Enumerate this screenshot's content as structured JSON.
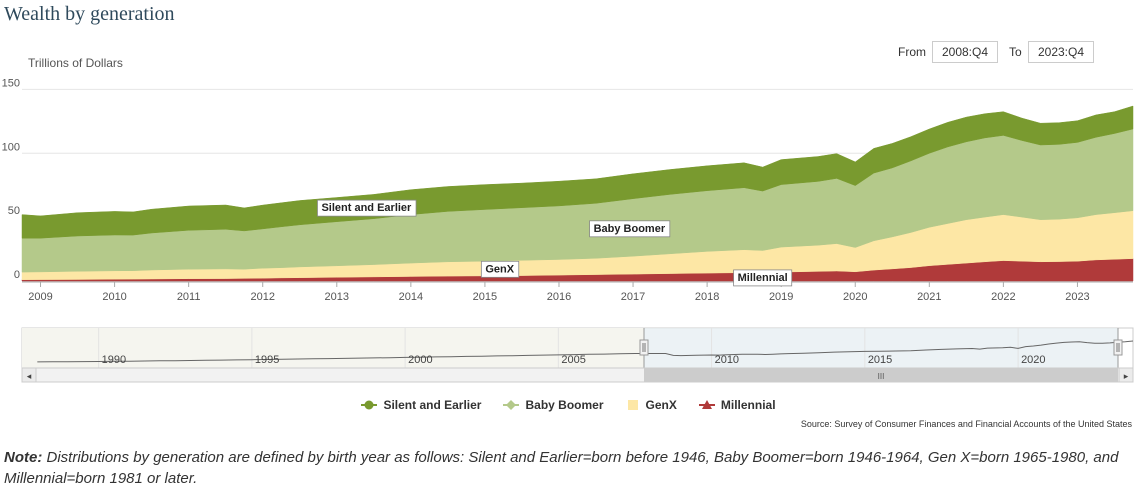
{
  "title": "Wealth by generation",
  "range_selector": {
    "from_label": "From",
    "from_value": "2008:Q4",
    "to_label": "To",
    "to_value": "2023:Q4"
  },
  "legend": {
    "items": [
      {
        "label": "Silent and Earlier",
        "color": "#799a2f"
      },
      {
        "label": "Baby Boomer",
        "color": "#b4c98a"
      },
      {
        "label": "GenX",
        "color": "#fde7a5"
      },
      {
        "label": "Millennial",
        "color": "#b03a3a"
      }
    ]
  },
  "annotations": [
    {
      "text": "Silent and Earlier",
      "series": "Silent and Earlier",
      "x": 2013.4
    },
    {
      "text": "Baby Boomer",
      "series": "Baby Boomer",
      "x": 2016.95
    },
    {
      "text": "GenX",
      "series": "GenX",
      "x": 2015.2
    },
    {
      "text": "Millennial",
      "series": "Millennial",
      "x": 2018.75
    }
  ],
  "source": "Source: Survey of Consumer Finances and Financial Accounts of the United States",
  "note": {
    "label": "Note:",
    "text": "Distributions by generation are defined by birth year as follows: Silent and Earlier=born before 1946, Baby Boomer=born 1946-1964, Gen X=born 1965-1980, and Millennial=born 1981 or later."
  },
  "navigator": {
    "tick_labels": [
      "1990",
      "1995",
      "2000",
      "2005",
      "2010",
      "2015",
      "2020"
    ],
    "scroll_grip": "III",
    "left_arrow": "◂",
    "right_arrow": "▸"
  },
  "chart_data": {
    "type": "area",
    "stacked": true,
    "ylabel": "Trillions of Dollars",
    "ylim": [
      0,
      155
    ],
    "yticks": [
      0,
      50,
      100,
      150
    ],
    "xlim": [
      2008.75,
      2023.75
    ],
    "xticks": [
      "2009",
      "2010",
      "2011",
      "2012",
      "2013",
      "2014",
      "2015",
      "2016",
      "2017",
      "2018",
      "2019",
      "2020",
      "2021",
      "2022",
      "2023"
    ],
    "grid": true,
    "x": [
      2008.75,
      2009.0,
      2009.5,
      2010.0,
      2010.25,
      2010.5,
      2011.0,
      2011.5,
      2011.75,
      2012.0,
      2012.25,
      2012.5,
      2013.0,
      2013.5,
      2014.0,
      2014.5,
      2015.0,
      2015.5,
      2016.0,
      2016.5,
      2017.0,
      2017.5,
      2018.0,
      2018.5,
      2018.75,
      2019.0,
      2019.5,
      2019.75,
      2020.0,
      2020.25,
      2020.5,
      2020.75,
      2021.0,
      2021.25,
      2021.5,
      2021.75,
      2022.0,
      2022.25,
      2022.5,
      2022.75,
      2023.0,
      2023.25,
      2023.5,
      2023.75
    ],
    "series": [
      {
        "name": "Millennial",
        "values": [
          1.0,
          1.1,
          1.2,
          1.4,
          1.5,
          1.6,
          1.8,
          1.9,
          2.0,
          2.2,
          2.4,
          2.6,
          2.9,
          3.2,
          3.5,
          3.8,
          4.0,
          4.2,
          4.6,
          5.0,
          5.4,
          5.8,
          6.2,
          6.5,
          6.4,
          7.0,
          7.5,
          7.8,
          7.2,
          8.5,
          9.5,
          10.5,
          12.0,
          13.0,
          14.0,
          15.0,
          16.0,
          15.5,
          15.0,
          15.2,
          15.5,
          16.5,
          17.0,
          17.5
        ]
      },
      {
        "name": "GenX",
        "values": [
          6.0,
          6.0,
          6.4,
          6.6,
          6.6,
          7.0,
          7.4,
          7.6,
          7.2,
          7.8,
          8.0,
          8.4,
          9.0,
          9.6,
          10.5,
          11.2,
          11.5,
          12.0,
          12.2,
          12.8,
          14.0,
          15.5,
          17.0,
          18.0,
          17.5,
          19.5,
          20.5,
          21.5,
          19.0,
          23.0,
          25.0,
          27.5,
          30.0,
          32.0,
          34.0,
          35.0,
          36.0,
          34.5,
          33.0,
          33.2,
          34.0,
          35.5,
          36.5,
          37.5
        ]
      },
      {
        "name": "Baby Boomer",
        "values": [
          26.5,
          26.4,
          27.6,
          28.0,
          27.8,
          29.0,
          30.5,
          31.0,
          30.0,
          30.8,
          32.0,
          33.0,
          34.5,
          36.0,
          38.0,
          39.5,
          40.5,
          41.2,
          42.0,
          43.0,
          45.0,
          46.5,
          47.5,
          48.5,
          46.5,
          49.0,
          50.0,
          51.0,
          48.5,
          53.0,
          54.0,
          56.0,
          58.0,
          60.0,
          61.0,
          62.0,
          62.0,
          60.0,
          58.5,
          58.5,
          59.0,
          60.5,
          62.0,
          64.0
        ]
      },
      {
        "name": "Silent and Earlier",
        "values": [
          18.5,
          17.5,
          18.3,
          18.5,
          18.2,
          18.6,
          19.0,
          19.0,
          18.0,
          18.6,
          18.8,
          19.0,
          19.0,
          19.0,
          19.5,
          19.5,
          19.5,
          19.2,
          19.3,
          19.2,
          19.5,
          19.5,
          19.5,
          19.5,
          18.8,
          19.5,
          19.5,
          19.4,
          18.5,
          19.3,
          19.2,
          19.0,
          19.0,
          19.2,
          19.3,
          19.0,
          18.5,
          17.5,
          17.0,
          17.0,
          17.0,
          17.5,
          17.0,
          18.0
        ]
      }
    ]
  }
}
